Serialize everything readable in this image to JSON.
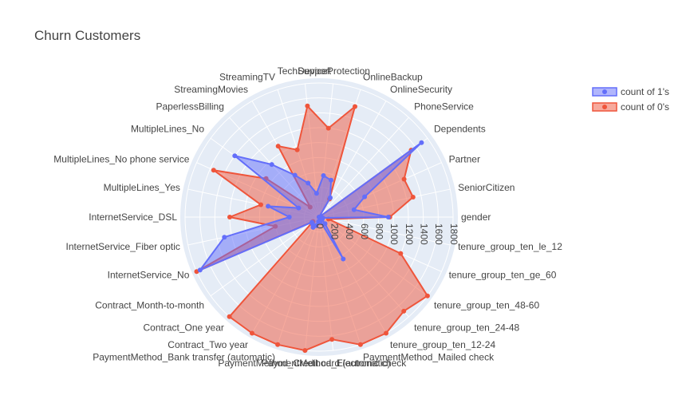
{
  "chart_data": {
    "type": "radar",
    "title": "Churn Customers",
    "categories": [
      "gender",
      "SeniorCitizen",
      "Partner",
      "Dependents",
      "PhoneService",
      "OnlineSecurity",
      "OnlineBackup",
      "DeviceProtection",
      "TechSupport",
      "StreamingTV",
      "StreamingMovies",
      "PaperlessBilling",
      "MultipleLines_No",
      "MultipleLines_No phone service",
      "MultipleLines_Yes",
      "InternetService_DSL",
      "InternetService_Fiber optic",
      "InternetService_No",
      "Contract_Month-to-month",
      "Contract_One year",
      "Contract_Two year",
      "PaymentMethod_Bank transfer (automatic)",
      "PaymentMethod_Credit card (automatic)",
      "PaymentMethod_Electronic check",
      "PaymentMethod_Mailed check",
      "tenure_group_ten_12-24",
      "tenure_group_ten_24-48",
      "tenure_group_ten_48-60",
      "tenure_group_ten_ge_60",
      "tenure_group_ten_le_12"
    ],
    "series": [
      {
        "name": "count of 1's",
        "color": "#636efa",
        "values": [
          930,
          480,
          670,
          1700,
          0,
          300,
          520,
          560,
          320,
          480,
          650,
          950,
          1400,
          300,
          700,
          400,
          1300,
          1750,
          120,
          130,
          160,
          120,
          60,
          60,
          60,
          650,
          120,
          50,
          20,
          50
        ]
      },
      {
        "name": "count of 0's",
        "color": "#ef553b",
        "values": [
          950,
          1290,
          1250,
          1530,
          0,
          280,
          1560,
          1200,
          1500,
          950,
          1100,
          180,
          880,
          1550,
          800,
          1200,
          600,
          1900,
          100,
          1800,
          1950,
          1900,
          1950,
          1650,
          1850,
          1800,
          1700,
          1830,
          1200,
          130
        ]
      }
    ],
    "radial_axis": {
      "range": [
        0,
        1800
      ],
      "ticks": [
        "0",
        "200",
        "400",
        "600",
        "800",
        "1000",
        "1200",
        "1400",
        "1600",
        "1800"
      ]
    },
    "legend": {
      "placement": "top-right"
    }
  }
}
